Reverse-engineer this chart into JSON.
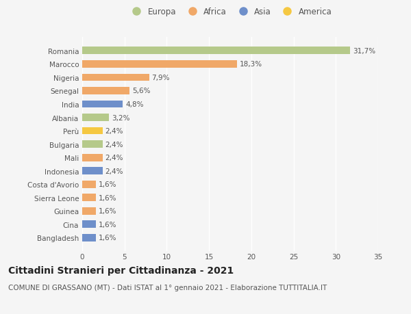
{
  "categories": [
    "Bangladesh",
    "Cina",
    "Guinea",
    "Sierra Leone",
    "Costa d'Avorio",
    "Indonesia",
    "Mali",
    "Bulgaria",
    "Perù",
    "Albania",
    "India",
    "Senegal",
    "Nigeria",
    "Marocco",
    "Romania"
  ],
  "values": [
    1.6,
    1.6,
    1.6,
    1.6,
    1.6,
    2.4,
    2.4,
    2.4,
    2.4,
    3.2,
    4.8,
    5.6,
    7.9,
    18.3,
    31.7
  ],
  "labels": [
    "1,6%",
    "1,6%",
    "1,6%",
    "1,6%",
    "1,6%",
    "2,4%",
    "2,4%",
    "2,4%",
    "2,4%",
    "3,2%",
    "4,8%",
    "5,6%",
    "7,9%",
    "18,3%",
    "31,7%"
  ],
  "colors": [
    "#6e8fca",
    "#6e8fca",
    "#f0a868",
    "#f0a868",
    "#f0a868",
    "#6e8fca",
    "#f0a868",
    "#b5c98a",
    "#f5c842",
    "#b5c98a",
    "#6e8fca",
    "#f0a868",
    "#f0a868",
    "#f0a868",
    "#b5c98a"
  ],
  "legend_items": [
    {
      "label": "Europa",
      "color": "#b5c98a"
    },
    {
      "label": "Africa",
      "color": "#f0a868"
    },
    {
      "label": "Asia",
      "color": "#6e8fca"
    },
    {
      "label": "America",
      "color": "#f5c842"
    }
  ],
  "xlim": [
    0,
    35
  ],
  "xticks": [
    0,
    5,
    10,
    15,
    20,
    25,
    30,
    35
  ],
  "title": "Cittadini Stranieri per Cittadinanza - 2021",
  "subtitle": "COMUNE DI GRASSANO (MT) - Dati ISTAT al 1° gennaio 2021 - Elaborazione TUTTITALIA.IT",
  "bg_color": "#f5f5f5",
  "bar_height": 0.55,
  "title_fontsize": 10,
  "subtitle_fontsize": 7.5,
  "label_fontsize": 7.5,
  "tick_fontsize": 7.5,
  "legend_fontsize": 8.5
}
